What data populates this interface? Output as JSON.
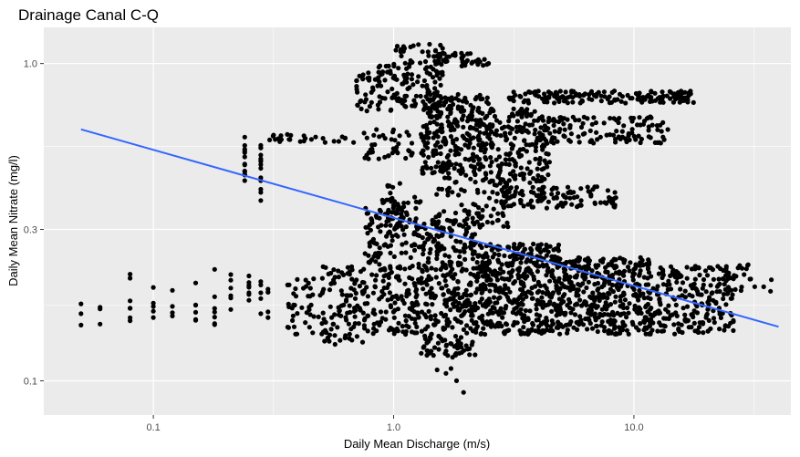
{
  "chart_data": {
    "type": "scatter",
    "title": "Drainage Canal C-Q",
    "xlabel": "Daily Mean Discharge (m/s)",
    "ylabel": "Daily Mean Nitrate (mg/l)",
    "x_scale": "log10",
    "y_scale": "log10",
    "xlim": [
      0.035,
      45
    ],
    "ylim": [
      0.078,
      1.3
    ],
    "x_ticks": [
      {
        "value": 0.1,
        "label": "0.1"
      },
      {
        "value": 1.0,
        "label": "1.0"
      },
      {
        "value": 10.0,
        "label": "10.0"
      }
    ],
    "y_ticks": [
      {
        "value": 0.1,
        "label": "0.1"
      },
      {
        "value": 0.3,
        "label": "0.3"
      },
      {
        "value": 1.0,
        "label": "1.0"
      }
    ],
    "grid": true,
    "legend": "none",
    "colors": {
      "panel": "#ebebeb",
      "grid": "#ffffff",
      "points": "#000000",
      "trend": "#3366ff"
    },
    "trend_line": {
      "name": "",
      "x": [
        0.05,
        40
      ],
      "y": [
        0.62,
        0.148
      ]
    },
    "series": [
      {
        "name": "",
        "clusters": [
          {
            "x": [
              0.05,
              0.05
            ],
            "y": [
              0.14,
              0.175
            ],
            "n": 3
          },
          {
            "x": [
              0.06,
              0.06
            ],
            "y": [
              0.14,
              0.175
            ],
            "n": 3
          },
          {
            "x": [
              0.08,
              0.08
            ],
            "y": [
              0.14,
              0.235
            ],
            "n": 7
          },
          {
            "x": [
              0.1,
              0.1
            ],
            "y": [
              0.15,
              0.205
            ],
            "n": 5
          },
          {
            "x": [
              0.12,
              0.12
            ],
            "y": [
              0.15,
              0.2
            ],
            "n": 4
          },
          {
            "x": [
              0.15,
              0.15
            ],
            "y": [
              0.15,
              0.215
            ],
            "n": 6
          },
          {
            "x": [
              0.18,
              0.18
            ],
            "y": [
              0.15,
              0.23
            ],
            "n": 7
          },
          {
            "x": [
              0.21,
              0.21
            ],
            "y": [
              0.15,
              0.22
            ],
            "n": 6
          },
          {
            "x": [
              0.25,
              0.25
            ],
            "y": [
              0.15,
              0.235
            ],
            "n": 7
          },
          {
            "x": [
              0.28,
              0.28
            ],
            "y": [
              0.15,
              0.21
            ],
            "n": 5
          },
          {
            "x": [
              0.3,
              0.3
            ],
            "y": [
              0.14,
              0.205
            ],
            "n": 5
          },
          {
            "x": [
              0.35,
              0.5
            ],
            "y": [
              0.14,
              0.21
            ],
            "n": 40
          },
          {
            "x": [
              0.5,
              0.75
            ],
            "y": [
              0.13,
              0.23
            ],
            "n": 100
          },
          {
            "x": [
              0.75,
              1.3
            ],
            "y": [
              0.14,
              0.38
            ],
            "n": 260
          },
          {
            "x": [
              1.3,
              2.2
            ],
            "y": [
              0.12,
              0.33
            ],
            "n": 320
          },
          {
            "x": [
              2.2,
              5.0
            ],
            "y": [
              0.14,
              0.27
            ],
            "n": 460
          },
          {
            "x": [
              5.0,
              12.0
            ],
            "y": [
              0.14,
              0.245
            ],
            "n": 380
          },
          {
            "x": [
              12.0,
              26.0
            ],
            "y": [
              0.14,
              0.23
            ],
            "n": 220
          },
          {
            "x": [
              26.0,
              38.0
            ],
            "y": [
              0.19,
              0.235
            ],
            "n": 18
          },
          {
            "x": [
              1.5,
              2.0
            ],
            "y": [
              0.09,
              0.14
            ],
            "n": 10
          },
          {
            "x": [
              0.24,
              0.24
            ],
            "y": [
              0.42,
              0.6
            ],
            "n": 14
          },
          {
            "x": [
              0.28,
              0.28
            ],
            "y": [
              0.37,
              0.58
            ],
            "n": 14
          },
          {
            "x": [
              0.3,
              0.75
            ],
            "y": [
              0.56,
              0.6
            ],
            "n": 26
          },
          {
            "x": [
              0.75,
              1.2
            ],
            "y": [
              0.5,
              0.62
            ],
            "n": 40
          },
          {
            "x": [
              0.7,
              1.0
            ],
            "y": [
              0.7,
              1.0
            ],
            "n": 60
          },
          {
            "x": [
              1.0,
              1.6
            ],
            "y": [
              0.72,
              1.15
            ],
            "n": 120
          },
          {
            "x": [
              1.3,
              2.5
            ],
            "y": [
              0.45,
              0.8
            ],
            "n": 280
          },
          {
            "x": [
              2.5,
              4.5
            ],
            "y": [
              0.42,
              0.72
            ],
            "n": 180
          },
          {
            "x": [
              1.5,
              3.0
            ],
            "y": [
              0.3,
              0.45
            ],
            "n": 100
          },
          {
            "x": [
              2.8,
              8.5
            ],
            "y": [
              0.35,
              0.41
            ],
            "n": 120
          },
          {
            "x": [
              3.0,
              18.0
            ],
            "y": [
              0.75,
              0.82
            ],
            "n": 160
          },
          {
            "x": [
              4.0,
              14.0
            ],
            "y": [
              0.56,
              0.68
            ],
            "n": 120
          },
          {
            "x": [
              1.5,
              2.5
            ],
            "y": [
              0.98,
              1.08
            ],
            "n": 40
          },
          {
            "x": [
              0.9,
              1.1
            ],
            "y": [
              0.3,
              0.42
            ],
            "n": 30
          }
        ]
      }
    ]
  }
}
